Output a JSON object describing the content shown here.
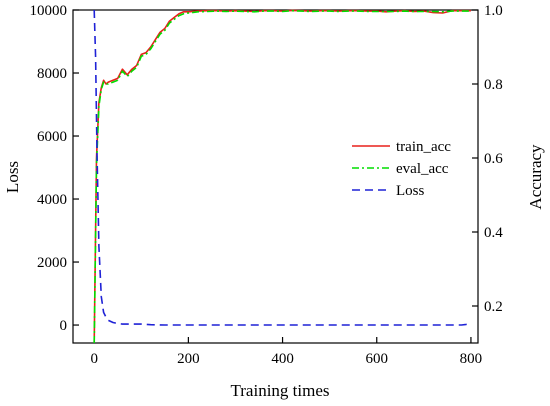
{
  "chart_data": {
    "type": "line",
    "title": "",
    "xlabel": "Training times",
    "ylabel": "Loss",
    "ylabel_right": "Accuracy",
    "xlim": [
      -45,
      815
    ],
    "ylim": [
      -570,
      10000
    ],
    "ylim_right": [
      0.1,
      1.0
    ],
    "x_ticks": [
      0,
      200,
      400,
      600,
      800
    ],
    "y_ticks": [
      0,
      2000,
      4000,
      6000,
      8000,
      10000
    ],
    "y_ticks_right": [
      0.2,
      0.4,
      0.6,
      0.8,
      1.0
    ],
    "y_tick_labels_right": [
      "0.2",
      "0.4",
      "0.6",
      "0.8",
      "1.0"
    ],
    "grid": false,
    "legend_position": "right-center",
    "series": [
      {
        "name": "train_acc",
        "axis": "right",
        "color": "#e8201b",
        "style": "solid",
        "x": [
          0,
          5,
          10,
          15,
          20,
          25,
          30,
          40,
          50,
          60,
          70,
          80,
          90,
          100,
          110,
          120,
          130,
          140,
          150,
          160,
          170,
          180,
          190,
          200,
          220,
          240,
          260,
          280,
          300,
          320,
          340,
          360,
          380,
          400,
          420,
          440,
          460,
          480,
          500,
          520,
          540,
          560,
          580,
          600,
          620,
          640,
          660,
          680,
          700,
          720,
          740,
          760,
          780,
          800
        ],
        "y": [
          0.1,
          0.6,
          0.75,
          0.79,
          0.81,
          0.8,
          0.805,
          0.81,
          0.815,
          0.84,
          0.825,
          0.84,
          0.85,
          0.88,
          0.885,
          0.9,
          0.92,
          0.94,
          0.95,
          0.97,
          0.98,
          0.99,
          0.995,
          0.995,
          0.997,
          0.998,
          0.998,
          0.997,
          0.998,
          0.997,
          0.996,
          0.998,
          0.998,
          0.997,
          0.999,
          0.998,
          0.997,
          0.998,
          0.998,
          0.997,
          0.998,
          0.998,
          0.997,
          0.997,
          0.995,
          0.997,
          0.998,
          0.996,
          0.997,
          0.993,
          0.992,
          0.998,
          0.998,
          0.998
        ]
      },
      {
        "name": "eval_acc",
        "axis": "right",
        "color": "#00dd00",
        "style": "dashdot",
        "x": [
          0,
          5,
          10,
          15,
          20,
          25,
          30,
          40,
          50,
          60,
          70,
          80,
          90,
          100,
          110,
          120,
          130,
          140,
          150,
          160,
          170,
          180,
          190,
          200,
          220,
          240,
          260,
          280,
          300,
          320,
          340,
          360,
          380,
          400,
          420,
          440,
          460,
          480,
          500,
          520,
          540,
          560,
          580,
          600,
          620,
          640,
          660,
          680,
          700,
          720,
          740,
          760,
          780,
          800
        ],
        "y": [
          0.1,
          0.58,
          0.74,
          0.785,
          0.805,
          0.8,
          0.8,
          0.805,
          0.81,
          0.835,
          0.82,
          0.835,
          0.845,
          0.875,
          0.88,
          0.895,
          0.915,
          0.935,
          0.945,
          0.965,
          0.975,
          0.985,
          0.99,
          0.992,
          0.995,
          0.996,
          0.997,
          0.996,
          0.997,
          0.996,
          0.995,
          0.997,
          0.997,
          0.996,
          0.998,
          0.997,
          0.996,
          0.997,
          0.997,
          0.996,
          0.997,
          0.997,
          0.996,
          0.996,
          0.996,
          0.996,
          0.997,
          0.996,
          0.996,
          0.996,
          0.995,
          0.997,
          0.997,
          0.997
        ]
      },
      {
        "name": "Loss",
        "axis": "left",
        "color": "#1f22d6",
        "style": "dashed",
        "x": [
          0,
          3,
          6,
          10,
          15,
          20,
          25,
          30,
          40,
          50,
          60,
          80,
          100,
          120,
          150,
          200,
          300,
          400,
          500,
          600,
          700,
          780,
          790,
          800
        ],
        "y": [
          10000,
          8500,
          5500,
          2500,
          900,
          400,
          250,
          150,
          80,
          50,
          30,
          30,
          30,
          10,
          0,
          0,
          0,
          0,
          0,
          0,
          0,
          0,
          20,
          50
        ]
      }
    ]
  }
}
